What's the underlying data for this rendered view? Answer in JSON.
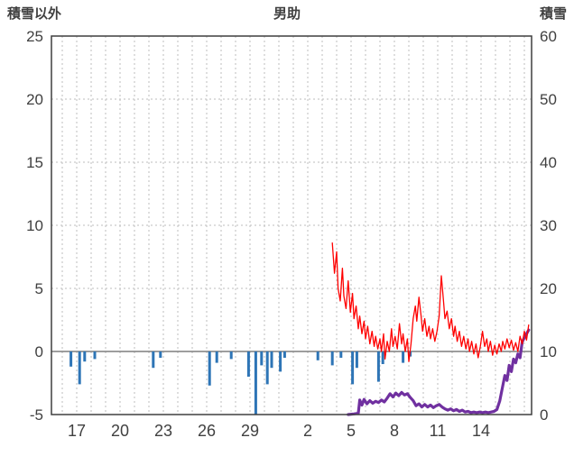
{
  "header": {
    "left_axis_title": "積雪以外",
    "chart_title": "男助",
    "right_axis_title": "積雪"
  },
  "chart_data": {
    "type": "line",
    "title": "男助",
    "x_axis": {
      "min": 15.25,
      "max": 48.5,
      "note": "day-of-month continuing across month boundary (31-day month), one gridline per day",
      "ticks": [
        {
          "pos": 17,
          "label": "17"
        },
        {
          "pos": 20,
          "label": "20"
        },
        {
          "pos": 23,
          "label": "23"
        },
        {
          "pos": 26,
          "label": "26"
        },
        {
          "pos": 29,
          "label": "29"
        },
        {
          "pos": 33,
          "label": "2"
        },
        {
          "pos": 36,
          "label": "5"
        },
        {
          "pos": 39,
          "label": "8"
        },
        {
          "pos": 42,
          "label": "11"
        },
        {
          "pos": 45,
          "label": "14"
        }
      ]
    },
    "left_axis": {
      "label": "積雪以外",
      "min": -5,
      "max": 25,
      "ticks": [
        -5,
        0,
        5,
        10,
        15,
        20,
        25
      ]
    },
    "right_axis": {
      "label": "積雪",
      "min": 0,
      "max": 60,
      "ticks": [
        0,
        10,
        20,
        30,
        40,
        50,
        60
      ]
    },
    "grid": {
      "vertical": true,
      "horizontal": true,
      "zero_line": true
    },
    "colors": {
      "red_line": "#ff0000",
      "blue_bars": "#2e75b6",
      "purple_line": "#7030a0",
      "frame": "#3f3f3f",
      "grid": "#bdbdbd",
      "zero": "#7f7f7f"
    },
    "series": [
      {
        "name": "blue-bars",
        "type": "bar",
        "axis": "left",
        "color": "#2e75b6",
        "points": [
          [
            16.6,
            -1.2
          ],
          [
            17.2,
            -2.6
          ],
          [
            17.55,
            -0.8
          ],
          [
            18.25,
            -0.6
          ],
          [
            22.3,
            -1.3
          ],
          [
            22.8,
            -0.5
          ],
          [
            26.2,
            -2.7
          ],
          [
            26.7,
            -0.9
          ],
          [
            27.7,
            -0.6
          ],
          [
            28.9,
            -2.0
          ],
          [
            29.4,
            -5.0
          ],
          [
            29.8,
            -1.1
          ],
          [
            30.2,
            -2.6
          ],
          [
            30.5,
            -1.3
          ],
          [
            31.1,
            -1.6
          ],
          [
            31.4,
            -0.5
          ],
          [
            33.7,
            -0.7
          ],
          [
            34.7,
            -1.1
          ],
          [
            35.3,
            -0.5
          ],
          [
            36.1,
            -2.6
          ],
          [
            36.4,
            -1.3
          ],
          [
            37.9,
            -2.4
          ],
          [
            38.2,
            -1.0
          ],
          [
            39.6,
            -0.9
          ],
          [
            40.1,
            -0.4
          ]
        ]
      },
      {
        "name": "purple-line",
        "type": "line",
        "axis": "right",
        "color": "#7030a0",
        "width": 3.2,
        "points": [
          [
            35.8,
            0
          ],
          [
            36.2,
            0.1
          ],
          [
            36.5,
            0.2
          ],
          [
            36.6,
            2.3
          ],
          [
            36.75,
            1.5
          ],
          [
            36.9,
            2.4
          ],
          [
            37.1,
            1.7
          ],
          [
            37.3,
            2.2
          ],
          [
            37.5,
            1.8
          ],
          [
            37.7,
            2.1
          ],
          [
            37.9,
            1.9
          ],
          [
            38.1,
            2.3
          ],
          [
            38.3,
            2.0
          ],
          [
            38.5,
            2.6
          ],
          [
            38.7,
            3.3
          ],
          [
            38.9,
            2.8
          ],
          [
            39.1,
            3.4
          ],
          [
            39.3,
            3.0
          ],
          [
            39.5,
            3.5
          ],
          [
            39.7,
            3.1
          ],
          [
            39.9,
            3.3
          ],
          [
            40.1,
            2.7
          ],
          [
            40.3,
            2.2
          ],
          [
            40.5,
            1.4
          ],
          [
            40.7,
            1.7
          ],
          [
            40.9,
            1.2
          ],
          [
            41.1,
            1.6
          ],
          [
            41.3,
            1.2
          ],
          [
            41.5,
            1.5
          ],
          [
            41.7,
            1.1
          ],
          [
            41.9,
            1.4
          ],
          [
            42.1,
            1.6
          ],
          [
            42.3,
            1.2
          ],
          [
            42.5,
            0.9
          ],
          [
            42.7,
            0.7
          ],
          [
            42.9,
            0.9
          ],
          [
            43.1,
            0.6
          ],
          [
            43.3,
            0.8
          ],
          [
            43.5,
            0.5
          ],
          [
            43.7,
            0.7
          ],
          [
            43.9,
            0.4
          ],
          [
            44.1,
            0.5
          ],
          [
            44.3,
            0.3
          ],
          [
            44.5,
            0.4
          ],
          [
            44.7,
            0.3
          ],
          [
            44.9,
            0.4
          ],
          [
            45.1,
            0.3
          ],
          [
            45.3,
            0.4
          ],
          [
            45.5,
            0.3
          ],
          [
            45.7,
            0.4
          ],
          [
            45.9,
            0.5
          ],
          [
            46.1,
            0.8
          ],
          [
            46.3,
            2.2
          ],
          [
            46.5,
            4.5
          ],
          [
            46.65,
            6.2
          ],
          [
            46.8,
            5.4
          ],
          [
            46.95,
            7.8
          ],
          [
            47.1,
            6.8
          ],
          [
            47.25,
            8.8
          ],
          [
            47.4,
            8.2
          ],
          [
            47.55,
            9.6
          ],
          [
            47.7,
            9.0
          ],
          [
            47.85,
            11.5
          ],
          [
            48.0,
            12.2
          ],
          [
            48.15,
            12.8
          ],
          [
            48.3,
            13.4
          ]
        ]
      },
      {
        "name": "red-line",
        "type": "line",
        "axis": "left",
        "color": "#ff0000",
        "width": 1.3,
        "points": [
          [
            34.7,
            8.6
          ],
          [
            34.85,
            6.2
          ],
          [
            35.0,
            7.9
          ],
          [
            35.1,
            5.0
          ],
          [
            35.25,
            4.0
          ],
          [
            35.4,
            6.6
          ],
          [
            35.5,
            4.4
          ],
          [
            35.65,
            3.4
          ],
          [
            35.8,
            5.6
          ],
          [
            35.95,
            3.1
          ],
          [
            36.1,
            4.6
          ],
          [
            36.2,
            2.6
          ],
          [
            36.35,
            3.6
          ],
          [
            36.5,
            1.8
          ],
          [
            36.6,
            2.8
          ],
          [
            36.75,
            1.4
          ],
          [
            36.9,
            2.4
          ],
          [
            37.0,
            1.0
          ],
          [
            37.15,
            2.0
          ],
          [
            37.3,
            0.6
          ],
          [
            37.45,
            1.6
          ],
          [
            37.6,
            0.4
          ],
          [
            37.7,
            1.2
          ],
          [
            37.85,
            0.2
          ],
          [
            38.0,
            1.0
          ],
          [
            38.1,
            0.0
          ],
          [
            38.25,
            1.4
          ],
          [
            38.35,
            -0.6
          ],
          [
            38.5,
            0.8
          ],
          [
            38.65,
            0.0
          ],
          [
            38.8,
            1.8
          ],
          [
            38.9,
            0.4
          ],
          [
            39.05,
            1.2
          ],
          [
            39.2,
            0.2
          ],
          [
            39.35,
            2.2
          ],
          [
            39.5,
            0.6
          ],
          [
            39.6,
            1.4
          ],
          [
            39.75,
            0.0
          ],
          [
            39.9,
            1.0
          ],
          [
            40.0,
            -0.8
          ],
          [
            40.15,
            0.6
          ],
          [
            40.3,
            2.6
          ],
          [
            40.45,
            3.6
          ],
          [
            40.55,
            2.4
          ],
          [
            40.7,
            4.3
          ],
          [
            40.85,
            2.8
          ],
          [
            40.95,
            1.6
          ],
          [
            41.1,
            2.6
          ],
          [
            41.25,
            1.2
          ],
          [
            41.4,
            2.0
          ],
          [
            41.5,
            1.0
          ],
          [
            41.65,
            1.8
          ],
          [
            41.8,
            0.8
          ],
          [
            41.95,
            1.6
          ],
          [
            42.1,
            2.8
          ],
          [
            42.25,
            6.0
          ],
          [
            42.4,
            4.0
          ],
          [
            42.5,
            2.6
          ],
          [
            42.65,
            3.2
          ],
          [
            42.8,
            1.8
          ],
          [
            42.95,
            2.6
          ],
          [
            43.1,
            1.2
          ],
          [
            43.2,
            2.0
          ],
          [
            43.35,
            0.8
          ],
          [
            43.5,
            1.6
          ],
          [
            43.65,
            0.4
          ],
          [
            43.8,
            1.2
          ],
          [
            43.95,
            0.2
          ],
          [
            44.1,
            1.0
          ],
          [
            44.2,
            0.0
          ],
          [
            44.35,
            0.8
          ],
          [
            44.5,
            -0.2
          ],
          [
            44.65,
            0.6
          ],
          [
            44.8,
            -0.5
          ],
          [
            44.95,
            0.4
          ],
          [
            45.1,
            1.6
          ],
          [
            45.25,
            0.4
          ],
          [
            45.4,
            1.0
          ],
          [
            45.5,
            0.0
          ],
          [
            45.65,
            0.8
          ],
          [
            45.8,
            -0.3
          ],
          [
            45.95,
            0.5
          ],
          [
            46.1,
            -0.2
          ],
          [
            46.25,
            0.6
          ],
          [
            46.4,
            0.0
          ],
          [
            46.5,
            0.8
          ],
          [
            46.65,
            0.2
          ],
          [
            46.8,
            1.0
          ],
          [
            46.95,
            0.3
          ],
          [
            47.1,
            0.9
          ],
          [
            47.25,
            0.1
          ],
          [
            47.4,
            0.7
          ],
          [
            47.55,
            0.0
          ],
          [
            47.7,
            1.2
          ],
          [
            47.85,
            0.6
          ],
          [
            48.0,
            1.6
          ],
          [
            48.15,
            0.9
          ],
          [
            48.3,
            2.1
          ]
        ]
      }
    ]
  }
}
